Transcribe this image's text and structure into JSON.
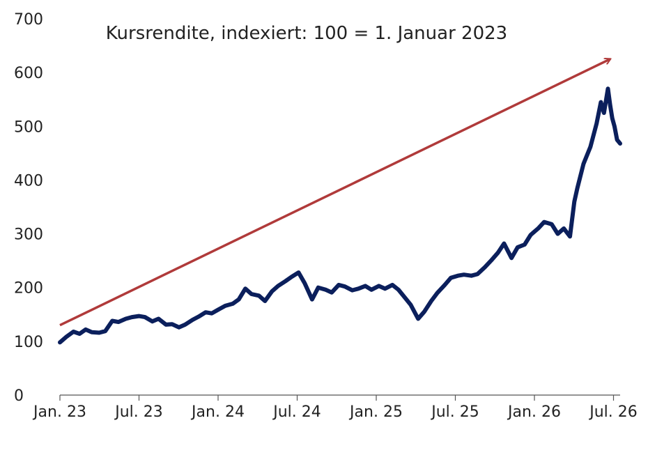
{
  "chart_data": {
    "type": "line",
    "title": "Kursrendite, indexiert: 100 = 1. Januar 2023",
    "xlabel": "",
    "ylabel": "",
    "ylim": [
      0,
      700
    ],
    "y_ticks": [
      0,
      100,
      200,
      300,
      400,
      500,
      600,
      700
    ],
    "x_ticks": [
      "Jan. 23",
      "Jul. 23",
      "Jan. 24",
      "Jul. 24",
      "Jan. 25",
      "Jul. 25",
      "Jan. 26",
      "Jul. 26"
    ],
    "xlim": [
      "2023-01-01",
      "2026-07-08"
    ],
    "grid": false,
    "legend": "none",
    "colors": {
      "series": "#0b1f5c",
      "arrow": "#b03a3a",
      "axis": "#555555"
    },
    "series": [
      {
        "points": [
          [
            "2023-01-01",
            98
          ],
          [
            "2023-01-15",
            108
          ],
          [
            "2023-02-01",
            118
          ],
          [
            "2023-02-15",
            114
          ],
          [
            "2023-03-01",
            122
          ],
          [
            "2023-03-15",
            117
          ],
          [
            "2023-04-01",
            116
          ],
          [
            "2023-04-15",
            119
          ],
          [
            "2023-05-01",
            138
          ],
          [
            "2023-05-15",
            136
          ],
          [
            "2023-06-01",
            142
          ],
          [
            "2023-06-15",
            145
          ],
          [
            "2023-07-01",
            147
          ],
          [
            "2023-07-15",
            145
          ],
          [
            "2023-08-01",
            137
          ],
          [
            "2023-08-15",
            142
          ],
          [
            "2023-09-01",
            131
          ],
          [
            "2023-09-15",
            132
          ],
          [
            "2023-10-01",
            126
          ],
          [
            "2023-10-15",
            131
          ],
          [
            "2023-11-01",
            140
          ],
          [
            "2023-11-15",
            146
          ],
          [
            "2023-12-01",
            154
          ],
          [
            "2023-12-15",
            152
          ],
          [
            "2024-01-01",
            160
          ],
          [
            "2024-01-15",
            166
          ],
          [
            "2024-02-01",
            170
          ],
          [
            "2024-02-15",
            178
          ],
          [
            "2024-03-01",
            198
          ],
          [
            "2024-03-15",
            188
          ],
          [
            "2024-04-01",
            185
          ],
          [
            "2024-04-15",
            175
          ],
          [
            "2024-05-01",
            193
          ],
          [
            "2024-05-15",
            203
          ],
          [
            "2024-06-01",
            212
          ],
          [
            "2024-06-15",
            220
          ],
          [
            "2024-07-01",
            228
          ],
          [
            "2024-07-15",
            208
          ],
          [
            "2024-08-01",
            178
          ],
          [
            "2024-08-15",
            200
          ],
          [
            "2024-09-01",
            196
          ],
          [
            "2024-09-15",
            191
          ],
          [
            "2024-10-01",
            205
          ],
          [
            "2024-10-15",
            202
          ],
          [
            "2024-11-01",
            195
          ],
          [
            "2024-11-15",
            198
          ],
          [
            "2024-12-01",
            203
          ],
          [
            "2024-12-15",
            196
          ],
          [
            "2025-01-01",
            203
          ],
          [
            "2025-01-15",
            198
          ],
          [
            "2025-02-01",
            205
          ],
          [
            "2025-02-15",
            196
          ],
          [
            "2025-03-01",
            182
          ],
          [
            "2025-03-15",
            168
          ],
          [
            "2025-04-01",
            142
          ],
          [
            "2025-04-15",
            155
          ],
          [
            "2025-05-01",
            175
          ],
          [
            "2025-05-15",
            190
          ],
          [
            "2025-06-01",
            205
          ],
          [
            "2025-06-15",
            218
          ],
          [
            "2025-07-01",
            222
          ],
          [
            "2025-07-15",
            224
          ],
          [
            "2025-08-01",
            222
          ],
          [
            "2025-08-15",
            225
          ],
          [
            "2025-09-01",
            238
          ],
          [
            "2025-09-15",
            250
          ],
          [
            "2025-10-01",
            265
          ],
          [
            "2025-10-15",
            282
          ],
          [
            "2025-11-01",
            255
          ],
          [
            "2025-11-15",
            275
          ],
          [
            "2025-12-01",
            280
          ],
          [
            "2025-12-15",
            298
          ],
          [
            "2026-01-01",
            310
          ],
          [
            "2026-01-15",
            322
          ],
          [
            "2026-02-01",
            318
          ],
          [
            "2026-02-15",
            300
          ],
          [
            "2026-03-01",
            310
          ],
          [
            "2026-03-15",
            295
          ],
          [
            "2026-03-25",
            360
          ],
          [
            "2026-04-01",
            385
          ],
          [
            "2026-04-15",
            430
          ],
          [
            "2026-05-01",
            462
          ],
          [
            "2026-05-15",
            505
          ],
          [
            "2026-05-25",
            545
          ],
          [
            "2026-06-01",
            525
          ],
          [
            "2026-06-10",
            570
          ],
          [
            "2026-06-15",
            540
          ],
          [
            "2026-06-20",
            515
          ],
          [
            "2026-06-25",
            500
          ],
          [
            "2026-07-01",
            475
          ],
          [
            "2026-07-08",
            468
          ]
        ]
      }
    ],
    "arrow": {
      "from": [
        "2023-01-01",
        130
      ],
      "to": [
        "2026-06-15",
        625
      ]
    }
  }
}
